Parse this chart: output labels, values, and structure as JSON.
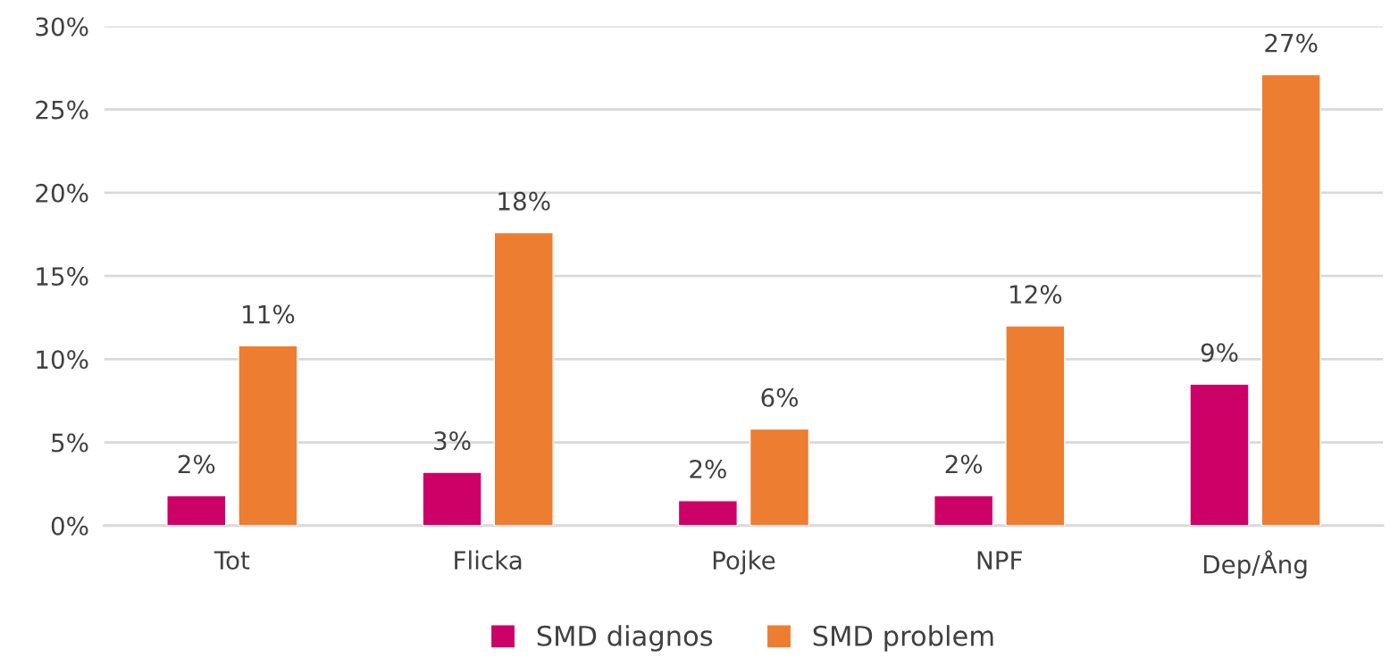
{
  "chart_data": {
    "type": "bar",
    "categories": [
      "Tot",
      "Flicka",
      "Pojke",
      "NPF",
      "Dep/Ång"
    ],
    "series": [
      {
        "name": "SMD diagnos",
        "color": "#cc0066",
        "values": [
          1.8,
          3.2,
          1.5,
          1.8,
          8.5
        ],
        "value_labels": [
          "2%",
          "3%",
          "2%",
          "2%",
          "9%"
        ]
      },
      {
        "name": "SMD problem",
        "color": "#ed7d31",
        "values": [
          10.8,
          17.6,
          5.8,
          12.0,
          27.1
        ],
        "value_labels": [
          "11%",
          "18%",
          "6%",
          "12%",
          "27%"
        ]
      }
    ],
    "ylim": [
      0,
      30
    ],
    "yticks": [
      {
        "value": 0,
        "label": "0%"
      },
      {
        "value": 5,
        "label": "5%"
      },
      {
        "value": 10,
        "label": "10%"
      },
      {
        "value": 15,
        "label": "15%"
      },
      {
        "value": 20,
        "label": "20%"
      },
      {
        "value": 25,
        "label": "25%"
      },
      {
        "value": 30,
        "label": "30%"
      }
    ],
    "grid": "y",
    "legend": "bottom"
  }
}
